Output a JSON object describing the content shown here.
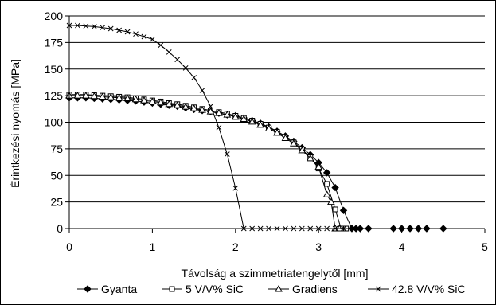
{
  "chart_data": {
    "type": "line",
    "xlabel": "Távolság a szimmetriatengelytől [mm]",
    "ylabel": "Érintkezési nyomás [MPa]",
    "xlim": [
      0,
      5
    ],
    "ylim": [
      0,
      200
    ],
    "xticks": [
      "0",
      "1",
      "2",
      "3",
      "4",
      "5"
    ],
    "yticks": [
      "0",
      "25",
      "50",
      "75",
      "100",
      "125",
      "150",
      "175",
      "200"
    ],
    "grid": "horizontal",
    "legend_position": "bottom",
    "series": [
      {
        "name": "Gyanta",
        "marker": "diamond-filled",
        "x": [
          0,
          0.1,
          0.2,
          0.3,
          0.4,
          0.5,
          0.6,
          0.7,
          0.8,
          0.9,
          1.0,
          1.1,
          1.2,
          1.3,
          1.4,
          1.5,
          1.6,
          1.7,
          1.8,
          1.9,
          2.0,
          2.1,
          2.2,
          2.3,
          2.4,
          2.5,
          2.6,
          2.7,
          2.8,
          2.9,
          3.0,
          3.1,
          3.2,
          3.3,
          3.4,
          3.45,
          3.5,
          3.6,
          3.9,
          4.0,
          4.1,
          4.2,
          4.3,
          4.5
        ],
        "y": [
          123,
          123,
          123,
          122.5,
          122,
          121.5,
          121,
          120.5,
          120,
          119,
          118,
          117,
          116,
          115,
          113.5,
          112,
          111,
          110,
          108.5,
          107,
          106,
          104,
          101.5,
          99,
          95.5,
          91.5,
          87,
          82,
          76,
          69.5,
          62,
          52.5,
          38.5,
          17,
          0,
          0,
          0,
          0,
          0,
          0,
          0,
          0,
          0,
          0
        ]
      },
      {
        "name": "5 V/V% SiC",
        "marker": "square-open",
        "x": [
          0,
          0.1,
          0.2,
          0.3,
          0.4,
          0.5,
          0.6,
          0.7,
          0.8,
          0.9,
          1.0,
          1.1,
          1.2,
          1.3,
          1.4,
          1.5,
          1.6,
          1.7,
          1.8,
          1.9,
          2.0,
          2.1,
          2.2,
          2.3,
          2.4,
          2.5,
          2.6,
          2.7,
          2.8,
          2.9,
          3.0,
          3.1,
          3.2,
          3.27,
          3.33
        ],
        "y": [
          126,
          126,
          126,
          125.5,
          125,
          124.5,
          124,
          123.5,
          122.5,
          121.5,
          120.5,
          119.5,
          118,
          117,
          115.5,
          114,
          112.5,
          111,
          109.5,
          108,
          106,
          104,
          101.5,
          98.5,
          95,
          91,
          86,
          81,
          74.5,
          67,
          56.5,
          42,
          18,
          0,
          0
        ]
      },
      {
        "name": "Gradiens",
        "marker": "triangle-open",
        "x": [
          0,
          0.1,
          0.2,
          0.3,
          0.4,
          0.5,
          0.6,
          0.7,
          0.8,
          0.9,
          1.0,
          1.1,
          1.2,
          1.3,
          1.4,
          1.5,
          1.6,
          1.7,
          1.8,
          1.9,
          2.0,
          2.1,
          2.2,
          2.3,
          2.4,
          2.5,
          2.6,
          2.7,
          2.8,
          2.9,
          3.0,
          3.1,
          3.15,
          3.2,
          3.25
        ],
        "y": [
          125,
          125,
          125,
          124.5,
          124,
          123.5,
          123,
          122.5,
          121.5,
          120.5,
          119.5,
          118.5,
          117,
          116,
          114.5,
          113,
          111.5,
          110,
          108.5,
          107,
          105,
          103,
          100.5,
          97.5,
          94,
          90,
          85,
          80,
          73.5,
          66,
          58,
          32,
          25,
          0,
          0
        ]
      },
      {
        "name": "42.8 V/V% SiC",
        "marker": "star",
        "x": [
          0,
          0.1,
          0.2,
          0.3,
          0.4,
          0.5,
          0.6,
          0.7,
          0.8,
          0.9,
          1.0,
          1.1,
          1.2,
          1.3,
          1.4,
          1.5,
          1.6,
          1.7,
          1.8,
          1.9,
          2.0,
          2.1,
          2.2,
          2.3,
          2.4,
          2.5,
          2.6,
          2.7,
          2.8,
          2.9,
          3.0,
          3.1,
          3.2,
          3.3
        ],
        "y": [
          191,
          191,
          190.5,
          190,
          189,
          188,
          186.5,
          185,
          183,
          180.5,
          178,
          172.5,
          166,
          159,
          151,
          142,
          130,
          115,
          95,
          70,
          38,
          0,
          0,
          0,
          0,
          0,
          0,
          0,
          0,
          0,
          0,
          0,
          0,
          0
        ]
      }
    ]
  }
}
